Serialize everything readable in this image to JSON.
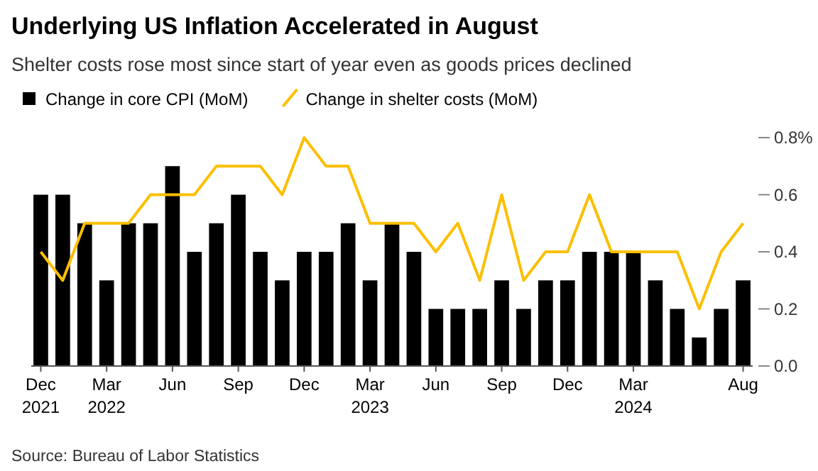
{
  "chart_data": {
    "type": "bar",
    "title": "Underlying US Inflation Accelerated in August",
    "subtitle": "Shelter costs rose most since start of year even as goods prices declined",
    "categories": [
      "Dec 2021",
      null,
      null,
      "Mar 2022",
      null,
      null,
      "Jun",
      null,
      null,
      "Sep",
      null,
      null,
      "Dec",
      null,
      null,
      "Mar 2023",
      null,
      null,
      "Jun",
      null,
      null,
      "Sep",
      null,
      null,
      "Dec",
      null,
      null,
      "Mar 2024",
      null,
      null,
      null,
      null,
      "Aug"
    ],
    "series": [
      {
        "name": "Change in core CPI (MoM)",
        "color": "#000000",
        "values": [
          0.6,
          0.6,
          0.5,
          0.3,
          0.5,
          0.5,
          0.7,
          0.4,
          0.5,
          0.6,
          0.4,
          0.3,
          0.4,
          0.4,
          0.5,
          0.3,
          0.5,
          0.4,
          0.2,
          0.2,
          0.2,
          0.3,
          0.2,
          0.3,
          0.3,
          0.4,
          0.4,
          0.4,
          0.3,
          0.2,
          0.1,
          0.2,
          0.3
        ]
      },
      {
        "name": "Change in shelter costs (MoM)",
        "type": "line",
        "color": "#fcbf00",
        "values": [
          0.4,
          0.3,
          0.5,
          0.5,
          0.5,
          0.6,
          0.6,
          0.6,
          0.7,
          0.7,
          0.7,
          0.6,
          0.8,
          0.7,
          0.7,
          0.5,
          0.5,
          0.5,
          0.4,
          0.5,
          0.3,
          0.6,
          0.3,
          0.4,
          0.4,
          0.6,
          0.4,
          0.4,
          0.4,
          0.4,
          0.2,
          0.4,
          0.5
        ]
      }
    ],
    "ylim": [
      0,
      0.8
    ],
    "yticks": [
      {
        "value": 0,
        "label": "0.0"
      },
      {
        "value": 0.2,
        "label": "0.2"
      },
      {
        "value": 0.4,
        "label": "0.4"
      },
      {
        "value": 0.6,
        "label": "0.6"
      },
      {
        "value": 0.8,
        "label": "0.8%"
      }
    ],
    "legend": "top left",
    "annotations": [
      "Source: Bureau of Labor Statistics"
    ]
  }
}
